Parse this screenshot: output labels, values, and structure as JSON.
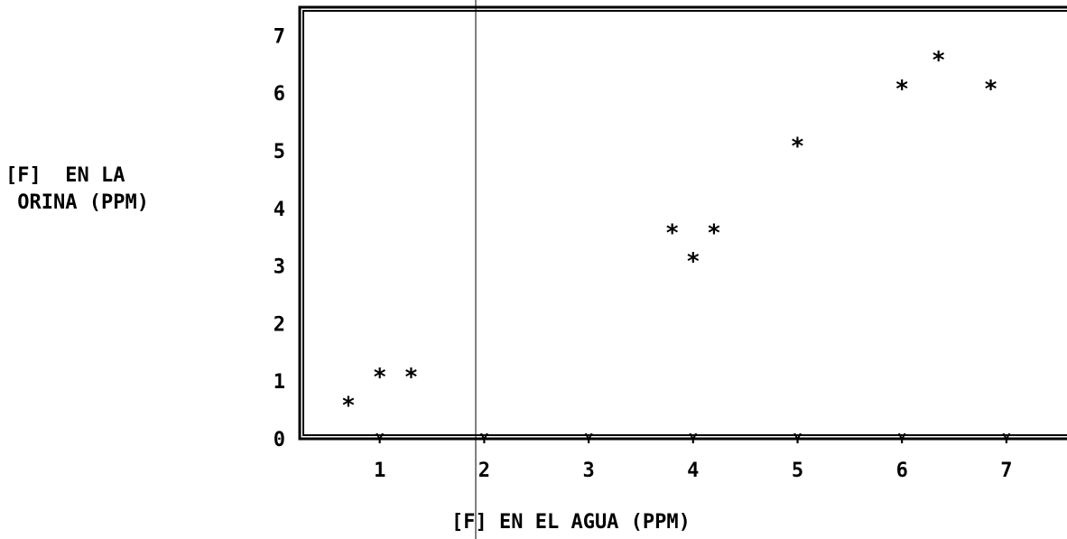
{
  "chart_data": {
    "type": "scatter",
    "title": "",
    "xlabel": "[F] EN EL AGUA (PPM)",
    "ylabel_lines": [
      "[F]  EN LA",
      " ORINA (PPM)"
    ],
    "xlim": [
      0.3,
      7.6
    ],
    "ylim": [
      0,
      7.5
    ],
    "x_ticks": [
      "1",
      "2",
      "3",
      "4",
      "5",
      "6",
      "7"
    ],
    "y_ticks": [
      "0",
      "1",
      "2",
      "3",
      "4",
      "5",
      "6",
      "7"
    ],
    "x_tick_mark": "Y",
    "marker": "*",
    "grid": false,
    "points": [
      {
        "x": 0.7,
        "y": 0.6
      },
      {
        "x": 1.0,
        "y": 1.1
      },
      {
        "x": 1.3,
        "y": 1.1
      },
      {
        "x": 3.8,
        "y": 3.6
      },
      {
        "x": 4.0,
        "y": 3.1
      },
      {
        "x": 4.2,
        "y": 3.6
      },
      {
        "x": 5.0,
        "y": 5.1
      },
      {
        "x": 6.0,
        "y": 6.1
      },
      {
        "x": 6.35,
        "y": 6.6
      },
      {
        "x": 6.85,
        "y": 6.1
      }
    ]
  }
}
